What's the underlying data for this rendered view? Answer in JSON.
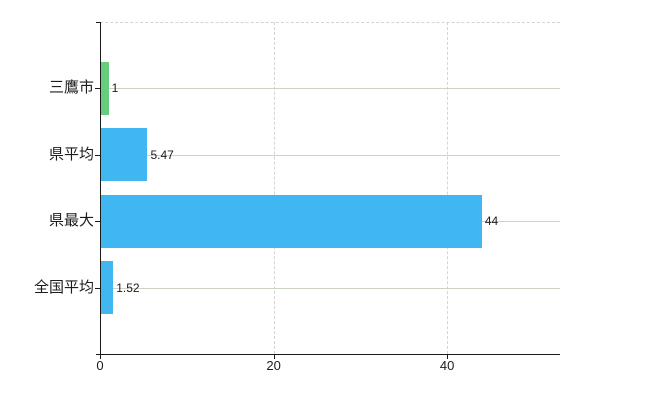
{
  "chart_data": {
    "type": "bar",
    "orientation": "horizontal",
    "title": "",
    "categories": [
      "三鷹市",
      "県平均",
      "県最大",
      "全国平均"
    ],
    "values": [
      1,
      5.47,
      44,
      1.52
    ],
    "value_labels": [
      "1",
      "5.47",
      "44",
      "1.52"
    ],
    "bar_colors": [
      "#68cc7e",
      "#40b7f0",
      "#40b7f0",
      "#40b7f0"
    ],
    "xlabel": "",
    "ylabel": "",
    "x_axis": {
      "ticks": [
        0,
        20,
        40
      ],
      "tick_labels": [
        "0",
        "20",
        "40"
      ],
      "range": [
        0,
        53
      ]
    },
    "grid": {
      "vertical_gridlines": "dashed",
      "horizontal_category_lines": "solid",
      "plot_top_border": "dashed"
    },
    "legend": "none"
  },
  "colors": {
    "background": "#ffffff",
    "bar_blue": "#40b7f0",
    "bar_green": "#68cc7e",
    "axis": "#1a1a1a",
    "grid_vertical": "#d6d2d6",
    "grid_horizontal": "#ccd3c7",
    "text": "#1c1c1c"
  }
}
